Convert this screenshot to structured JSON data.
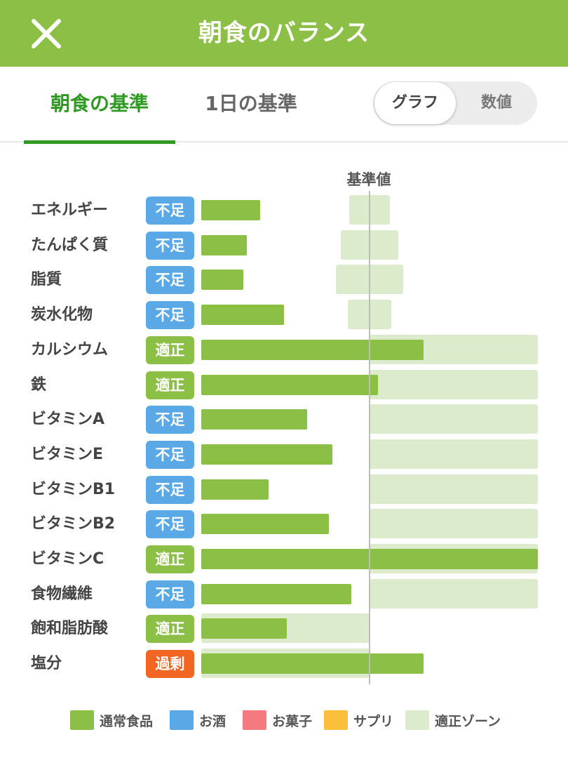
{
  "header": {
    "title": "朝食のバランス",
    "background": "#8cbf46"
  },
  "tabs": [
    {
      "label": "朝食の基準",
      "active": true
    },
    {
      "label": "1日の基準",
      "active": false
    }
  ],
  "view_toggle": {
    "options": [
      "グラフ",
      "数値"
    ],
    "selected": "グラフ"
  },
  "chart_data": {
    "type": "bar",
    "reference_label": "基準値",
    "reference_value": 100,
    "unit_note": "values are percent of the 基準値 (reference = 100)",
    "categories": [
      "エネルギー",
      "たんぱく質",
      "脂質",
      "炭水化物",
      "カルシウム",
      "鉄",
      "ビタミンA",
      "ビタミンE",
      "ビタミンB1",
      "ビタミンB2",
      "ビタミンC",
      "食物繊維",
      "飽和脂肪酸",
      "塩分"
    ],
    "statuses": [
      "不足",
      "不足",
      "不足",
      "不足",
      "適正",
      "適正",
      "不足",
      "不足",
      "不足",
      "不足",
      "適正",
      "不足",
      "適正",
      "過剰"
    ],
    "values": [
      35,
      27,
      25,
      49,
      132,
      105,
      63,
      78,
      40,
      76,
      200,
      89,
      51,
      132
    ],
    "appropriate_zone": [
      [
        -12,
        12
      ],
      [
        -17,
        17
      ],
      [
        -20,
        20
      ],
      [
        -13,
        13
      ],
      [
        0,
        200
      ],
      [
        0,
        200
      ],
      [
        0,
        200
      ],
      [
        0,
        200
      ],
      [
        0,
        200
      ],
      [
        0,
        200
      ],
      [
        0,
        200
      ],
      [
        0,
        200
      ],
      [
        -100,
        0
      ],
      [
        -100,
        0
      ]
    ],
    "xlim": [
      -100,
      200
    ],
    "series": [
      {
        "name": "通常食品",
        "color": "#8cbf46"
      }
    ]
  },
  "status_colors": {
    "不足": "#5aa9e6",
    "適正": "#8cbf46",
    "過剰": "#f26522"
  },
  "legend": [
    {
      "label": "通常食品",
      "color": "#8cbf46"
    },
    {
      "label": "お酒",
      "color": "#5aa9e6"
    },
    {
      "label": "お菓子",
      "color": "#f47a80"
    },
    {
      "label": "サプリ",
      "color": "#fbbf3c"
    },
    {
      "label": "適正ゾーン",
      "color": "#dcebcc"
    }
  ]
}
